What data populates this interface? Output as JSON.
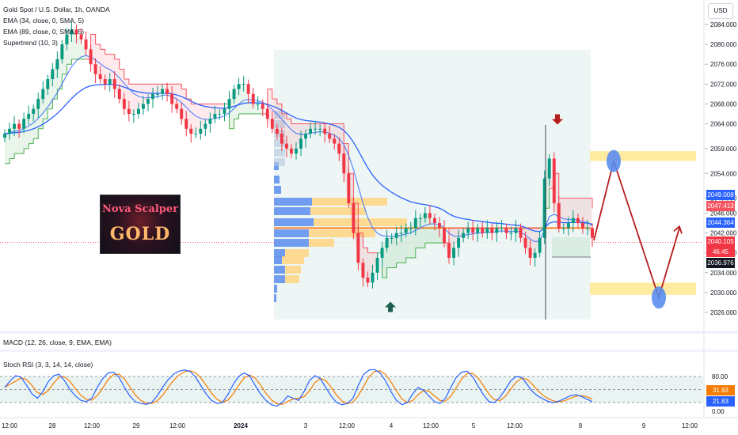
{
  "legend": {
    "symbol": "Gold Spot / U.S. Dollar, 1h, OANDA",
    "ema34": "EMA (34, close, 0, SMA, 5)",
    "ema89": "EMA (89, close, 0, SMA, 5)",
    "supertrend": "Supertrend (10, 3)",
    "macd": "MACD (12, 26, close, 9, EMA, EMA)",
    "stoch": "Stoch RSI (3, 3, 14, 14, close)"
  },
  "currency_button": "USD",
  "logo": {
    "line1": "Nova Scalper",
    "line2": "GOLD"
  },
  "badges": {
    "ema89": "2049.008",
    "supertrend": "2047.413",
    "ema34": "2044.364",
    "price": "2040.105",
    "countdown": "46:45",
    "cursor": "2036.976",
    "stoch_d": "31.93",
    "stoch_k": "21.83"
  },
  "colors": {
    "bull": "#089981",
    "bear": "#f23645",
    "ema34": "#2962ff",
    "ema89": "#2962ff",
    "supertrend_down": "#f7525f",
    "supertrend_up": "#4caf50",
    "zone": "#ffe680",
    "projection": "#b71c1c",
    "target_circle": "#5b8def",
    "stoch_k": "#2962ff",
    "stoch_d": "#f57c00"
  },
  "chart_data": {
    "type": "candlestick",
    "title": "Gold Spot / U.S. Dollar, 1h, OANDA",
    "price_axis": {
      "ticks": [
        "2084.000",
        "2080.000",
        "2076.000",
        "2072.000",
        "2068.000",
        "2064.000",
        "2059.000",
        "2054.000",
        "2049.000",
        "2046.000",
        "2042.000",
        "2038.000",
        "2034.000",
        "2030.000",
        "2026.000"
      ]
    },
    "time_axis": {
      "ticks": [
        "12:00",
        "28",
        "12:00",
        "29",
        "12:00",
        "2024",
        "3",
        "12:00",
        "4",
        "12:00",
        "5",
        "12:00",
        "8",
        "9",
        "12:00"
      ]
    },
    "stoch_axis": {
      "ticks": [
        "80.00",
        "20.00",
        "0.00"
      ],
      "bands": [
        80,
        50,
        20
      ]
    },
    "close_series": [
      2062,
      2063,
      2064,
      2063,
      2065,
      2066,
      2067,
      2069,
      2071,
      2073,
      2075,
      2077,
      2080,
      2082,
      2083,
      2082,
      2081,
      2079,
      2076,
      2074,
      2073,
      2072,
      2073,
      2071,
      2069,
      2067,
      2066,
      2066,
      2067,
      2068,
      2069,
      2070,
      2070,
      2071,
      2070,
      2068,
      2067,
      2065,
      2063,
      2062,
      2062,
      2063,
      2064,
      2065,
      2066,
      2066,
      2067,
      2069,
      2071,
      2072,
      2072,
      2070,
      2068,
      2068,
      2067,
      2065,
      2063,
      2062,
      2060,
      2059,
      2058,
      2059,
      2061,
      2062,
      2063,
      2063,
      2063,
      2062,
      2061,
      2060,
      2058,
      2054,
      2048,
      2042,
      2036,
      2033,
      2032,
      2034,
      2037,
      2039,
      2041,
      2041,
      2042,
      2042,
      2043,
      2043,
      2045,
      2045,
      2046,
      2045,
      2044,
      2043,
      2040,
      2037,
      2039,
      2041,
      2042,
      2043,
      2042,
      2043,
      2042,
      2043,
      2042,
      2043,
      2043,
      2042,
      2042,
      2043,
      2041,
      2039,
      2037,
      2038,
      2041,
      2053,
      2057,
      2048,
      2043,
      2043,
      2044,
      2045,
      2044,
      2043,
      2043,
      2041
    ],
    "stoch_k": [
      55,
      70,
      82,
      78,
      60,
      40,
      30,
      45,
      68,
      82,
      85,
      70,
      50,
      35,
      25,
      22,
      30,
      55,
      75,
      88,
      90,
      78,
      55,
      35,
      22,
      18,
      16,
      20,
      35,
      55,
      72,
      85,
      92,
      95,
      92,
      80,
      60,
      40,
      25,
      18,
      20,
      38,
      62,
      80,
      88,
      82,
      60,
      40,
      25,
      15,
      12,
      20,
      35,
      30,
      25,
      45,
      70,
      82,
      75,
      55,
      35,
      20,
      15,
      18,
      30,
      60,
      85,
      95,
      96,
      88,
      70,
      45,
      25,
      15,
      20,
      40,
      55,
      48,
      35,
      22,
      18,
      30,
      55,
      78,
      90,
      92,
      80,
      58,
      38,
      22,
      20,
      32,
      50,
      70,
      80,
      78,
      62,
      45,
      35,
      28,
      22,
      20,
      24,
      30,
      36,
      38,
      34,
      28,
      22
    ],
    "projection": [
      {
        "label": "start",
        "price": 2040.5
      },
      {
        "label": "upper target",
        "price": 2056.5
      },
      {
        "label": "lower target",
        "price": 2029
      },
      {
        "label": "end",
        "price": 2043
      }
    ],
    "zones": [
      {
        "name": "upper",
        "from": 2057,
        "to": 2058
      },
      {
        "name": "lower",
        "from": 2030,
        "to": 2031.5
      }
    ],
    "markers": [
      {
        "type": "sell-arrow",
        "price": 2064
      },
      {
        "type": "buy-arrow",
        "price": 2028
      }
    ]
  }
}
